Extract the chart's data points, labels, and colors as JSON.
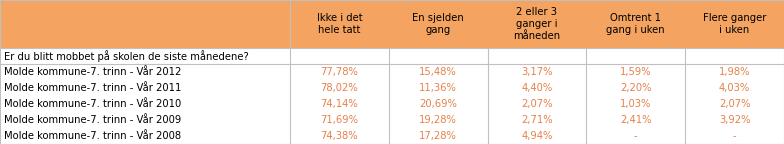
{
  "header_bg": "#F4A460",
  "text_color_header": "#000000",
  "text_color_data": "#E8804A",
  "border_color": "#C0C0C0",
  "col_headers": [
    "Ikke i det\nhele tatt",
    "En sjelden\ngang",
    "2 eller 3\nganger i\nmåneden",
    "Omtrent 1\ngang i uken",
    "Flere ganger\ni uken"
  ],
  "section_label": "Er du blitt mobbet på skolen de siste månedene?",
  "rows": [
    [
      "Molde kommune-7. trinn - Vår 2012",
      "77,78%",
      "15,48%",
      "3,17%",
      "1,59%",
      "1,98%"
    ],
    [
      "Molde kommune-7. trinn - Vår 2011",
      "78,02%",
      "11,36%",
      "4,40%",
      "2,20%",
      "4,03%"
    ],
    [
      "Molde kommune-7. trinn - Vår 2010",
      "74,14%",
      "20,69%",
      "2,07%",
      "1,03%",
      "2,07%"
    ],
    [
      "Molde kommune-7. trinn - Vår 2009",
      "71,69%",
      "19,28%",
      "2,71%",
      "2,41%",
      "3,92%"
    ],
    [
      "Molde kommune-7. trinn - Vår 2008",
      "74,38%",
      "17,28%",
      "4,94%",
      "-",
      "-"
    ]
  ],
  "header_fontsize": 7.2,
  "cell_fontsize": 7.2,
  "fig_width": 7.84,
  "fig_height": 1.44,
  "dpi": 100
}
